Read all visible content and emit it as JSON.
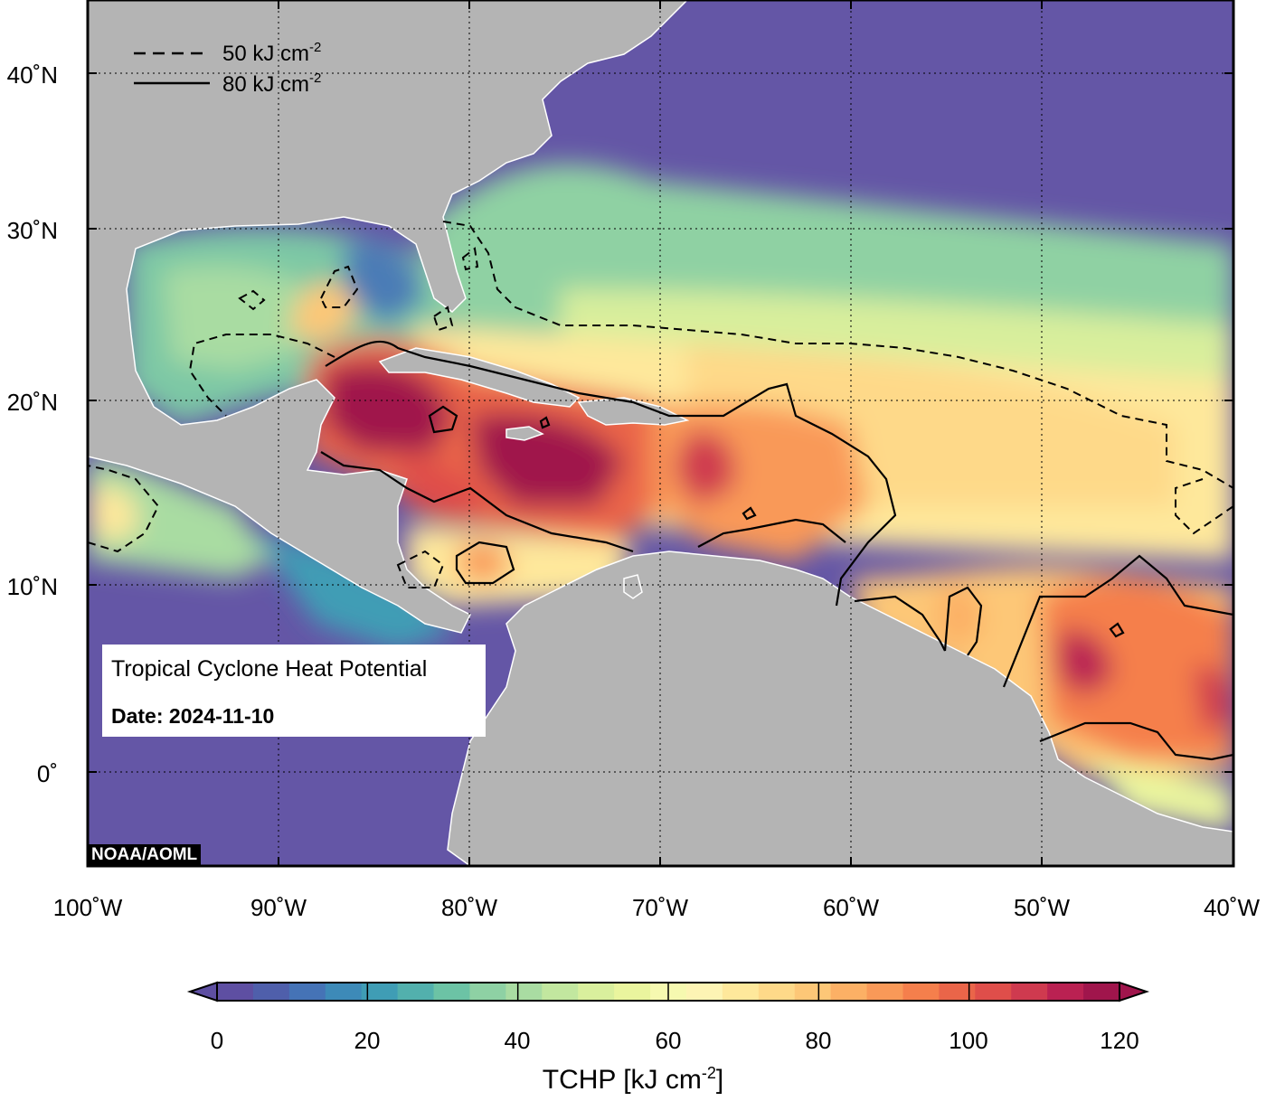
{
  "map": {
    "title": "Tropical Cyclone Heat Potential",
    "date_label": "Date: 2024-11-10",
    "credit": "NOAA/AOML",
    "lon_labels": [
      "100˚W",
      "90˚W",
      "80˚W",
      "70˚W",
      "60˚W",
      "50˚W",
      "40˚W"
    ],
    "lat_labels": [
      "40˚N",
      "30˚N",
      "20˚N",
      "10˚N",
      "0˚"
    ],
    "legend": [
      {
        "style": "dashed",
        "label": "50 kJ cm",
        "exp": "-2"
      },
      {
        "style": "solid",
        "label": "80 kJ cm",
        "exp": "-2"
      }
    ],
    "land_color": "#b4b4b4",
    "ocean_cold_color": "#6456a6"
  },
  "colorbar": {
    "title": "TCHP [kJ cm",
    "title_exp": "-2",
    "title_close": "]",
    "ticks": [
      "0",
      "20",
      "40",
      "60",
      "80",
      "100",
      "120"
    ],
    "colors": [
      "#5e4fa2",
      "#4f5fab",
      "#4573b6",
      "#3d8ab8",
      "#3f9db5",
      "#52b0ad",
      "#6cc3a5",
      "#8ed1a4",
      "#a9dca2",
      "#c2e79f",
      "#d9ef9d",
      "#eaf59e",
      "#f6f9b0",
      "#fdf4b4",
      "#fee89b",
      "#fed989",
      "#fdc777",
      "#fcb065",
      "#f99958",
      "#f57f4c",
      "#ea6549",
      "#df4e4a",
      "#cf3a4f",
      "#ba2152",
      "#a0154c"
    ]
  }
}
